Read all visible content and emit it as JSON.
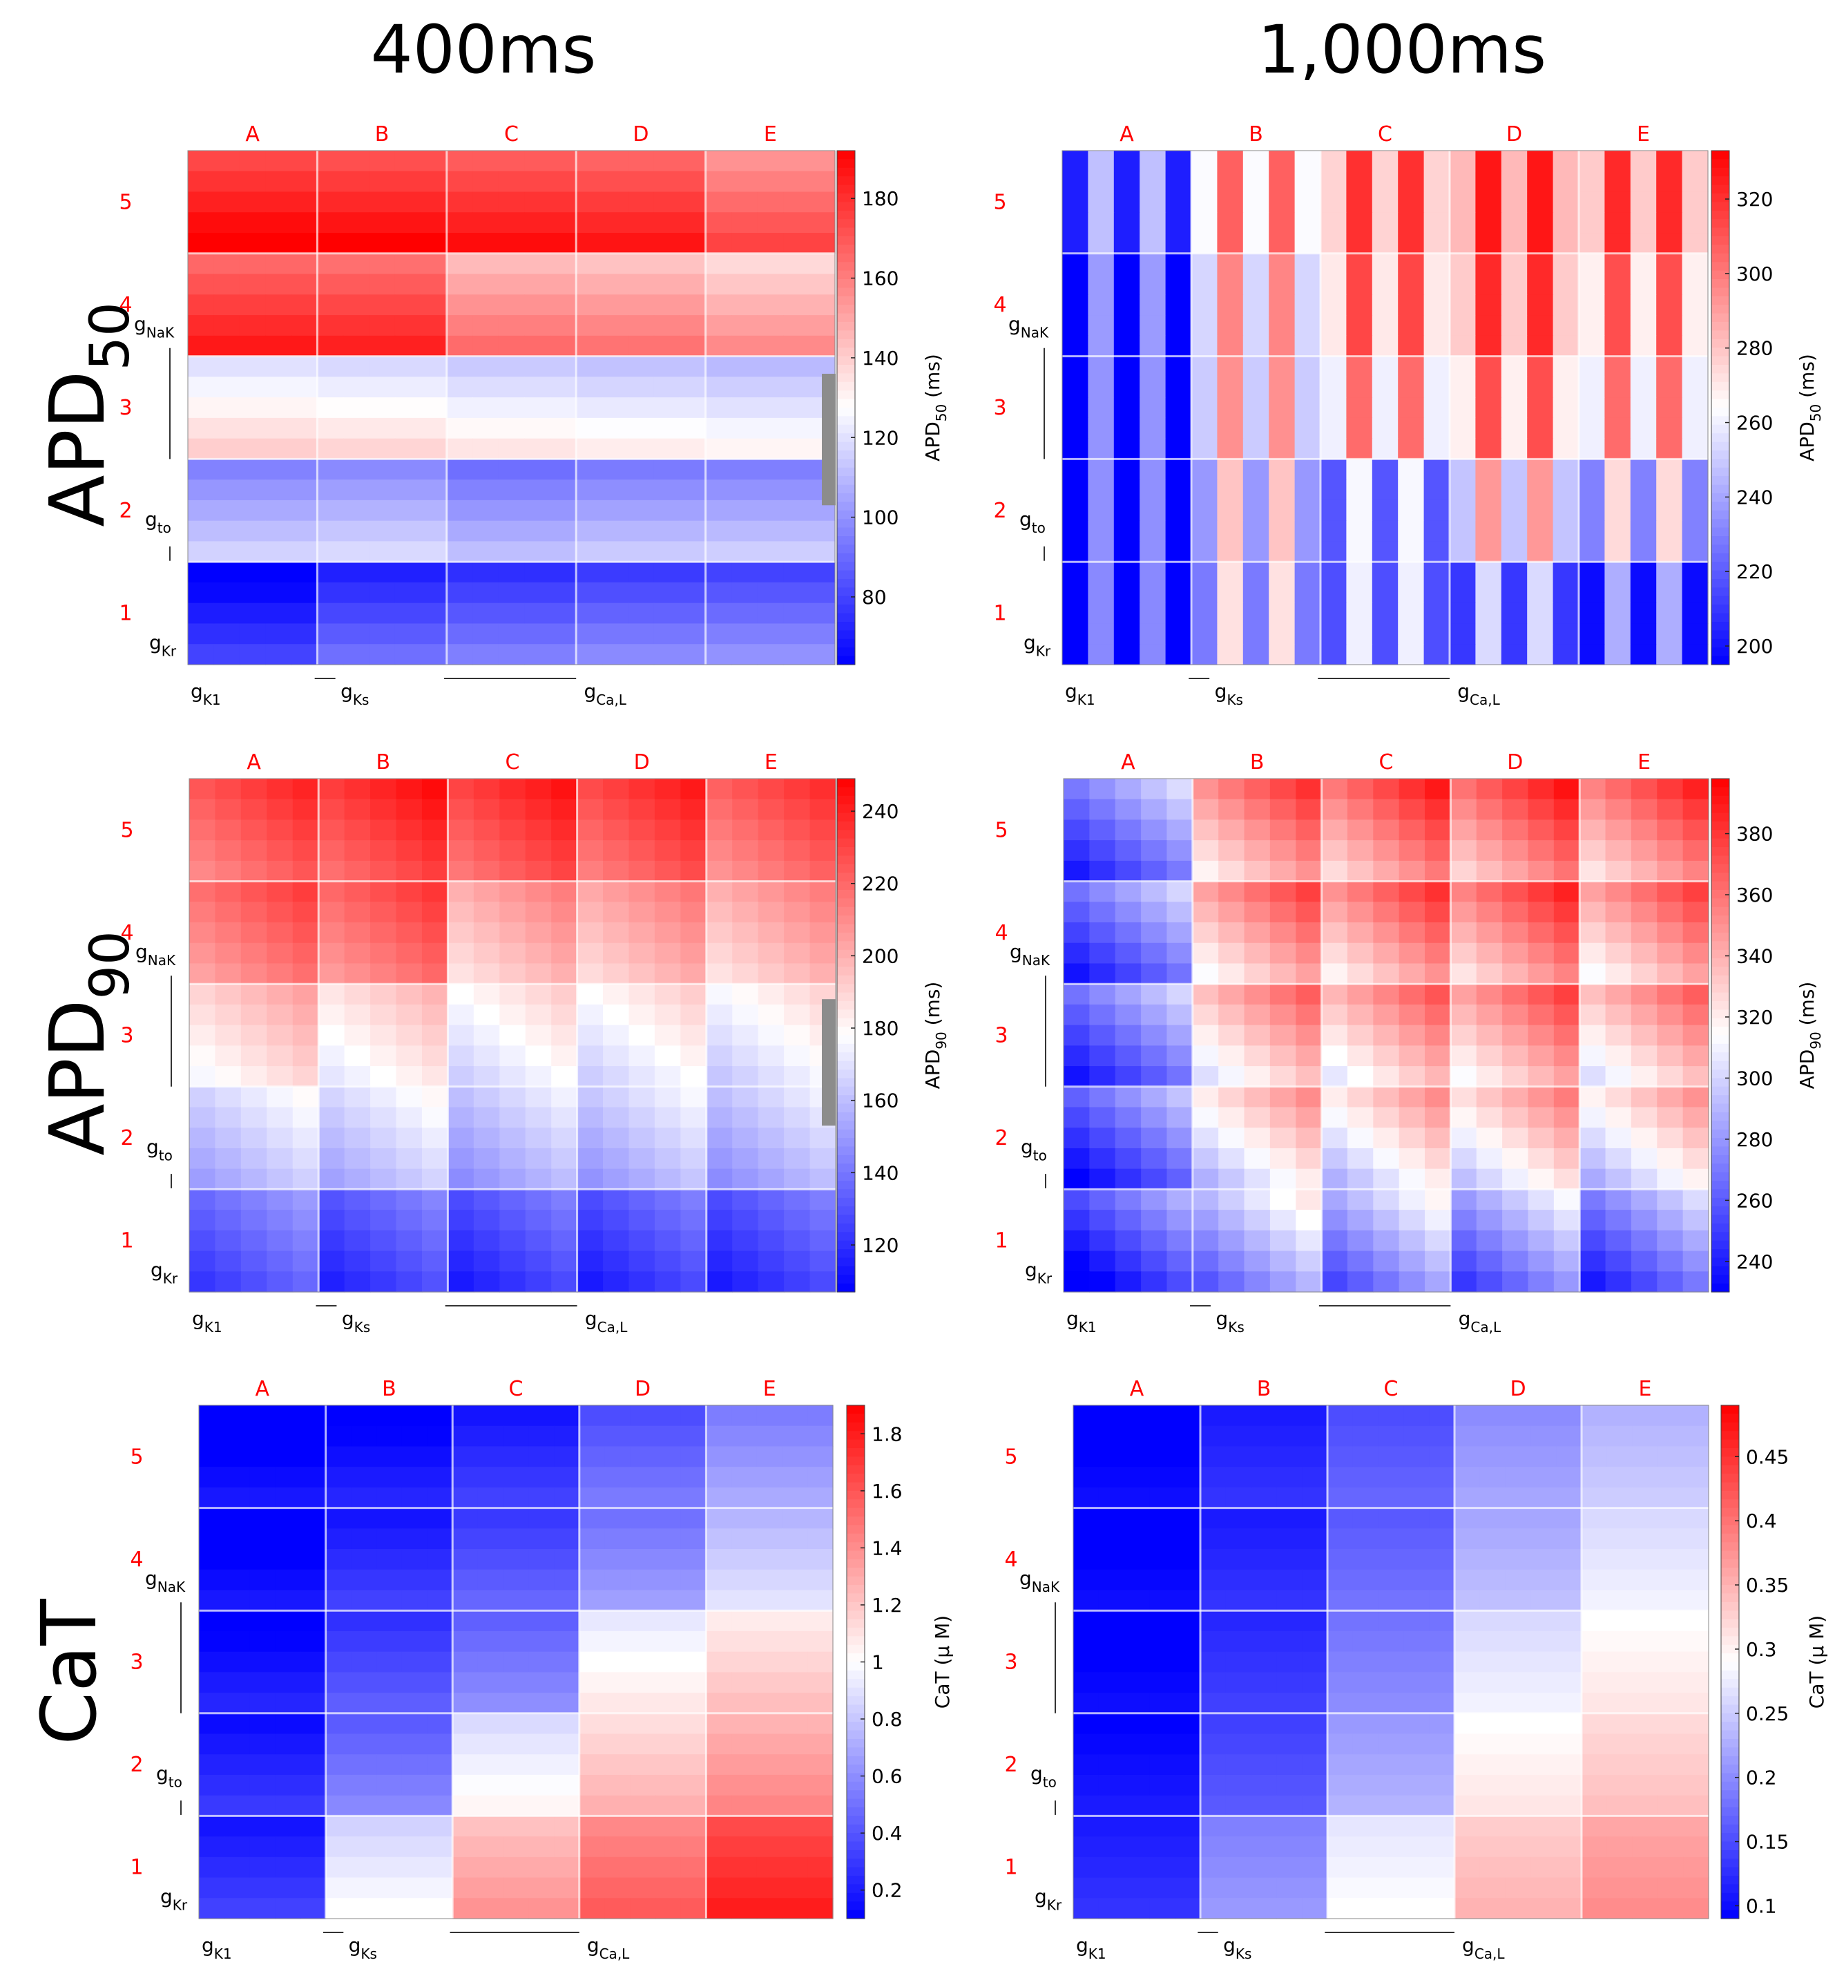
{
  "columns": [
    "400ms",
    "1,000ms"
  ],
  "rows": [
    {
      "label": "APD",
      "sub": "50"
    },
    {
      "label": "APD",
      "sub": "90"
    },
    {
      "label": "CaT",
      "sub": ""
    }
  ],
  "colors": {
    "low": "#0000ff",
    "mid": "#ffffff",
    "high": "#ff0000",
    "grid_letter": "#ff0000",
    "sep": "#ffffff"
  },
  "axis_labels": {
    "x": [
      {
        "base": "g",
        "sub": "K1"
      },
      {
        "base": "g",
        "sub": "Ks"
      },
      {
        "base": "g",
        "sub": "Ca,L"
      }
    ],
    "y": [
      {
        "base": "g",
        "sub": "NaK"
      },
      {
        "base": "g",
        "sub": "to"
      },
      {
        "base": "g",
        "sub": "Kr"
      }
    ]
  },
  "chart_data": [
    {
      "id": "apd50-400",
      "type": "heatmap",
      "columns": [
        "A",
        "B",
        "C",
        "D",
        "E"
      ],
      "rows": [
        "5",
        "4",
        "3",
        "2",
        "1"
      ],
      "colorbar": {
        "label": "APD",
        "label_sub": "50",
        "unit": "(ms)",
        "min": 63,
        "max": 192,
        "ticks": [
          "80",
          "100",
          "120",
          "140",
          "160",
          "180"
        ],
        "tick_values": [
          80,
          100,
          120,
          140,
          160,
          180
        ],
        "shaded_range": [
          103,
          136
        ]
      },
      "block_values": [
        [
          184,
          182,
          179,
          177,
          165
        ],
        [
          176,
          174,
          155,
          153,
          147
        ],
        [
          130,
          128,
          124,
          122,
          120
        ],
        [
          106,
          108,
          101,
          104,
          105
        ],
        [
          70,
          81,
          85,
          88,
          90
        ]
      ],
      "stripe_mode": "h",
      "stripe_amp": 10
    },
    {
      "id": "apd50-1000",
      "type": "heatmap",
      "columns": [
        "A",
        "B",
        "C",
        "D",
        "E"
      ],
      "rows": [
        "5",
        "4",
        "3",
        "2",
        "1"
      ],
      "colorbar": {
        "label": "APD",
        "label_sub": "50",
        "unit": "(ms)",
        "min": 195,
        "max": 333,
        "ticks": [
          "200",
          "220",
          "240",
          "260",
          "280",
          "300",
          "320"
        ],
        "tick_values": [
          200,
          220,
          240,
          260,
          280,
          300,
          320
        ]
      },
      "block_values": [
        [
          225,
          285,
          298,
          305,
          300
        ],
        [
          215,
          275,
          292,
          300,
          290
        ],
        [
          213,
          272,
          282,
          290,
          282
        ],
        [
          212,
          258,
          240,
          270,
          252
        ],
        [
          210,
          250,
          238,
          232,
          220
        ]
      ],
      "stripe_mode": "v",
      "stripe_amp": 22
    },
    {
      "id": "apd90-400",
      "type": "heatmap",
      "columns": [
        "A",
        "B",
        "C",
        "D",
        "E"
      ],
      "rows": [
        "5",
        "4",
        "3",
        "2",
        "1"
      ],
      "colorbar": {
        "label": "APD",
        "label_sub": "90",
        "unit": "(ms)",
        "min": 107,
        "max": 249,
        "ticks": [
          "120",
          "140",
          "160",
          "180",
          "200",
          "220",
          "240"
        ],
        "tick_values": [
          120,
          140,
          160,
          180,
          200,
          220,
          240
        ],
        "shaded_range": [
          153,
          188
        ]
      },
      "block_values": [
        [
          225,
          232,
          230,
          228,
          222
        ],
        [
          218,
          220,
          200,
          202,
          200
        ],
        [
          190,
          185,
          178,
          178,
          176
        ],
        [
          165,
          166,
          160,
          162,
          160
        ],
        [
          136,
          130,
          128,
          128,
          128
        ]
      ],
      "stripe_mode": "d",
      "stripe_amp": 14
    },
    {
      "id": "apd90-1000",
      "type": "heatmap",
      "columns": [
        "A",
        "B",
        "C",
        "D",
        "E"
      ],
      "rows": [
        "5",
        "4",
        "3",
        "2",
        "1"
      ],
      "colorbar": {
        "label": "APD",
        "label_sub": "90",
        "unit": "(ms)",
        "min": 230,
        "max": 398,
        "ticks": [
          "240",
          "260",
          "280",
          "300",
          "320",
          "340",
          "360",
          "380"
        ],
        "tick_values": [
          240,
          260,
          280,
          300,
          320,
          340,
          360,
          380
        ]
      },
      "block_values": [
        [
          270,
          350,
          358,
          360,
          355
        ],
        [
          268,
          345,
          350,
          355,
          345
        ],
        [
          268,
          335,
          338,
          345,
          335
        ],
        [
          262,
          320,
          320,
          325,
          318
        ],
        [
          255,
          290,
          285,
          280,
          270
        ]
      ],
      "stripe_mode": "d",
      "stripe_amp": 32
    },
    {
      "id": "cat-400",
      "type": "heatmap",
      "columns": [
        "A",
        "B",
        "C",
        "D",
        "E"
      ],
      "rows": [
        "5",
        "4",
        "3",
        "2",
        "1"
      ],
      "colorbar": {
        "label": "CaT",
        "label_sub": "",
        "unit": "(μ M)",
        "min": 0.1,
        "max": 1.9,
        "ticks": [
          "0.2",
          "0.4",
          "0.6",
          "0.8",
          "1",
          "1.2",
          "1.4",
          "1.6",
          "1.8"
        ],
        "tick_values": [
          0.2,
          0.4,
          0.6,
          0.8,
          1,
          1.2,
          1.4,
          1.6,
          1.8
        ]
      },
      "block_values": [
        [
          0.1,
          0.15,
          0.25,
          0.45,
          0.62
        ],
        [
          0.1,
          0.25,
          0.38,
          0.58,
          0.82
        ],
        [
          0.15,
          0.35,
          0.52,
          1.0,
          1.15
        ],
        [
          0.22,
          0.5,
          0.95,
          1.2,
          1.35
        ],
        [
          0.25,
          0.92,
          1.3,
          1.5,
          1.72
        ]
      ],
      "stripe_mode": "h",
      "stripe_amp": 0.08
    },
    {
      "id": "cat-1000",
      "type": "heatmap",
      "columns": [
        "A",
        "B",
        "C",
        "D",
        "E"
      ],
      "rows": [
        "5",
        "4",
        "3",
        "2",
        "1"
      ],
      "colorbar": {
        "label": "CaT",
        "label_sub": "",
        "unit": "(μ M)",
        "min": 0.09,
        "max": 0.49,
        "ticks": [
          "0.1",
          "0.15",
          "0.2",
          "0.25",
          "0.3",
          "0.35",
          "0.4",
          "0.45"
        ],
        "tick_values": [
          0.1,
          0.15,
          0.2,
          0.25,
          0.3,
          0.35,
          0.4,
          0.45
        ]
      },
      "block_values": [
        [
          0.09,
          0.12,
          0.16,
          0.21,
          0.24
        ],
        [
          0.09,
          0.12,
          0.17,
          0.23,
          0.27
        ],
        [
          0.09,
          0.13,
          0.19,
          0.27,
          0.3
        ],
        [
          0.1,
          0.15,
          0.22,
          0.3,
          0.33
        ],
        [
          0.12,
          0.2,
          0.28,
          0.34,
          0.37
        ]
      ],
      "stripe_mode": "h",
      "stripe_amp": 0.01
    }
  ]
}
